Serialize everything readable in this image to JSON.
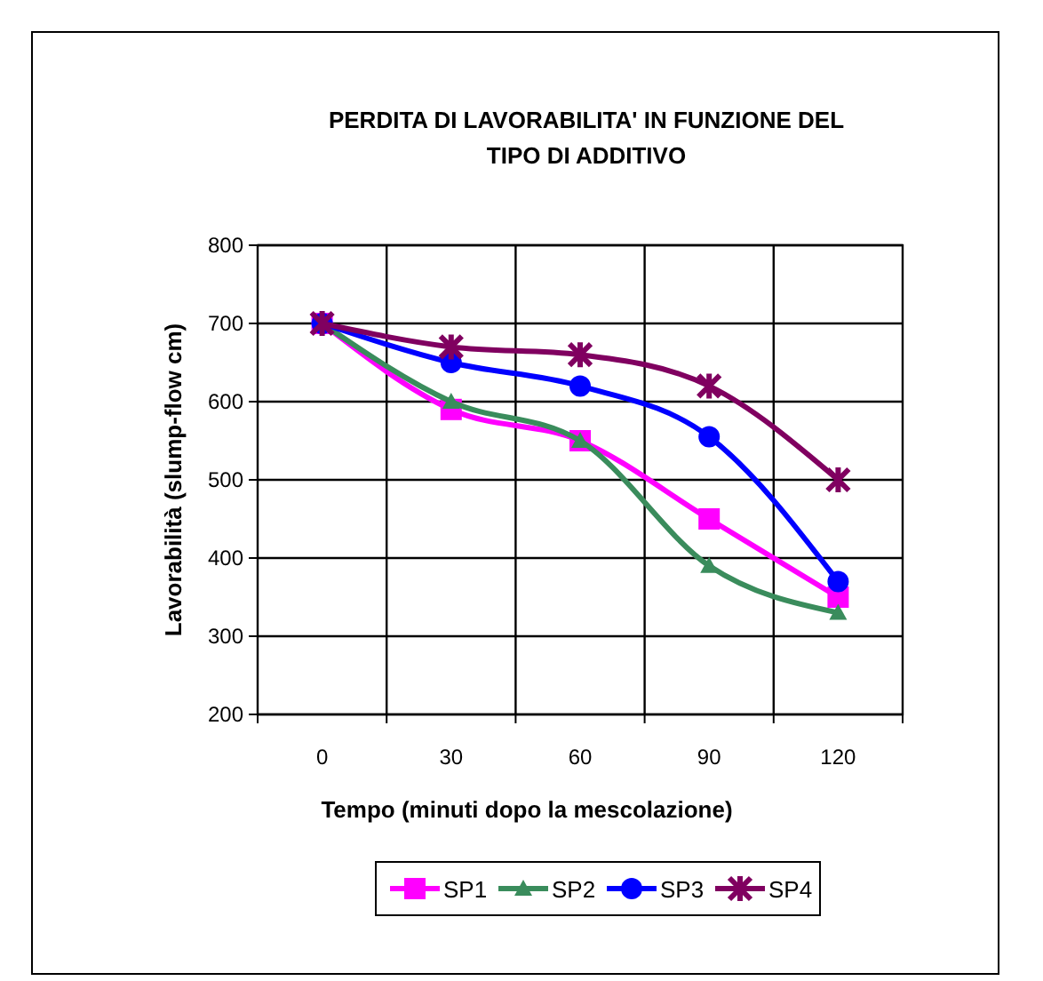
{
  "chart_data": {
    "type": "line",
    "title": "PERDITA DI LAVORABILITA' IN FUNZIONE DEL TIPO DI ADDITIVO",
    "xlabel": "Tempo (minuti dopo la mescolazione)",
    "ylabel": "Lavorabilità (slump-flow  cm)",
    "categories": [
      "0",
      "30",
      "60",
      "90",
      "120"
    ],
    "ylim": [
      200,
      800
    ],
    "yticks": [
      200,
      300,
      400,
      500,
      600,
      700,
      800
    ],
    "grid": true,
    "legend": "bottom",
    "series": [
      {
        "name": "SP1",
        "color": "#ff00ff",
        "marker": "square",
        "values": [
          700,
          590,
          550,
          450,
          350
        ]
      },
      {
        "name": "SP2",
        "color": "#3a8c5c",
        "marker": "triangle",
        "values": [
          700,
          600,
          550,
          390,
          330
        ]
      },
      {
        "name": "SP3",
        "color": "#0000ff",
        "marker": "circle",
        "values": [
          700,
          650,
          620,
          555,
          370
        ]
      },
      {
        "name": "SP4",
        "color": "#800060",
        "marker": "cross",
        "values": [
          700,
          670,
          660,
          620,
          500
        ]
      }
    ]
  }
}
